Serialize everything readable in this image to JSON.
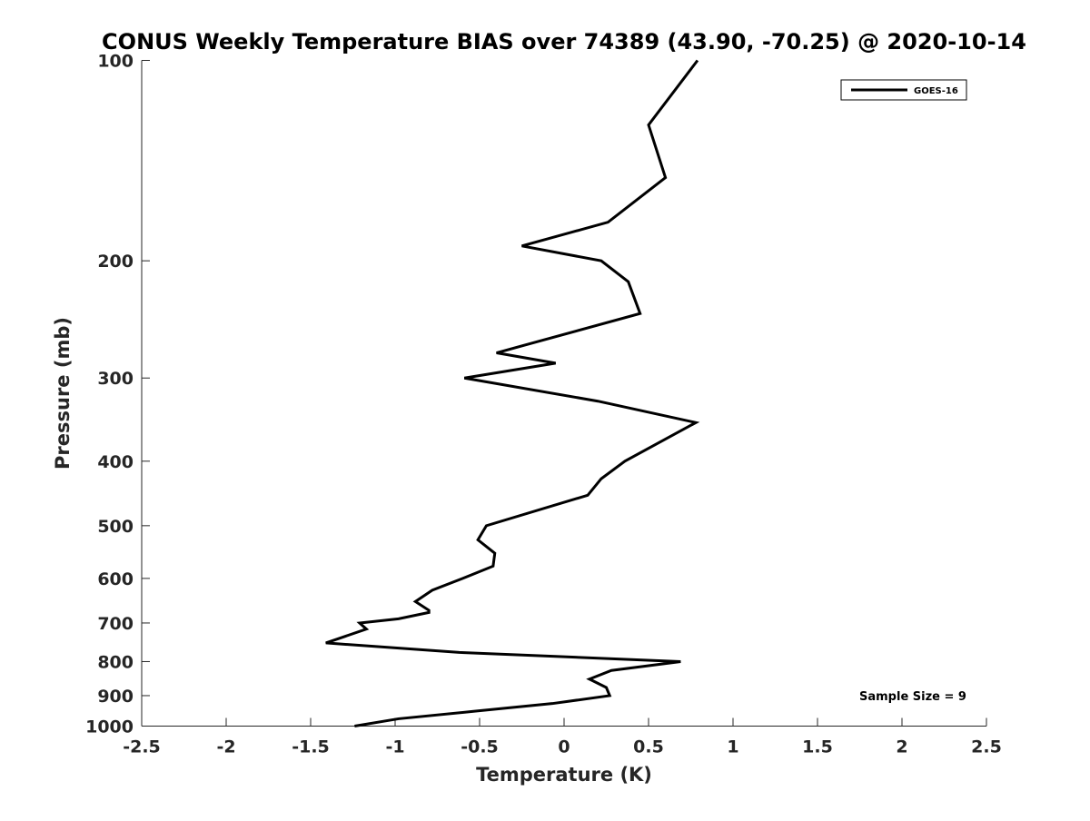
{
  "chart_data": {
    "type": "line",
    "title": "CONUS Weekly Temperature BIAS over 74389 (43.90, -70.25) @ 2020-10-14",
    "xlabel": "Temperature (K)",
    "ylabel": "Pressure (mb)",
    "xlim": [
      -2.5,
      2.5
    ],
    "ylim": [
      100,
      1000
    ],
    "y_scale": "log",
    "y_reversed": true,
    "grid": false,
    "legend_placement": "top-right",
    "x_ticks": [
      -2.5,
      -2,
      -1.5,
      -1,
      -0.5,
      0,
      0.5,
      1,
      1.5,
      2,
      2.5
    ],
    "x_tick_labels": [
      "-2.5",
      "-2",
      "-1.5",
      "-1",
      "-0.5",
      "0",
      "0.5",
      "1",
      "1.5",
      "2",
      "2.5"
    ],
    "y_ticks": [
      100,
      200,
      300,
      400,
      500,
      600,
      700,
      800,
      900,
      1000
    ],
    "y_tick_labels": [
      "100",
      "200",
      "300",
      "400",
      "500",
      "600",
      "700",
      "800",
      "900",
      "1000"
    ],
    "series": [
      {
        "name": "GOES-16",
        "color": "#000000",
        "x": [
          0.79,
          0.5,
          0.6,
          0.26,
          -0.25,
          0.22,
          0.38,
          0.45,
          -0.4,
          -0.05,
          -0.59,
          0.2,
          0.78,
          0.36,
          0.22,
          0.14,
          -0.46,
          -0.51,
          -0.41,
          -0.42,
          -0.6,
          -0.78,
          -0.88,
          -0.8,
          -0.8,
          -0.98,
          -1.21,
          -1.17,
          -1.41,
          -0.62,
          0.69,
          0.28,
          0.15,
          0.25,
          0.27,
          -0.07,
          -0.53,
          -0.98,
          -1.24
        ],
        "y": [
          100,
          125,
          150,
          175,
          190,
          200,
          215,
          240,
          275,
          285,
          300,
          325,
          350,
          400,
          425,
          450,
          500,
          525,
          550,
          575,
          600,
          625,
          650,
          670,
          675,
          690,
          700,
          715,
          750,
          775,
          800,
          825,
          850,
          875,
          900,
          925,
          950,
          975,
          1000
        ]
      }
    ],
    "annotation": "Sample Size = 9"
  },
  "colors": {
    "line": "#000000",
    "axes": "#262626",
    "background": "#ffffff"
  }
}
